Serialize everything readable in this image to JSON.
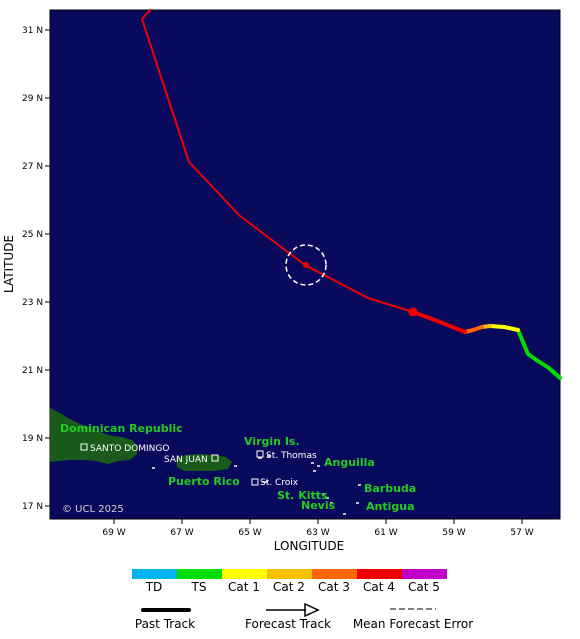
{
  "map": {
    "xlabel": "LONGITUDE",
    "ylabel": "LATITUDE",
    "lon_ticks": [
      "69 W",
      "67 W",
      "65 W",
      "63 W",
      "61 W",
      "59 W",
      "57 W"
    ],
    "lat_ticks": [
      "31 N",
      "29 N",
      "27 N",
      "25 N",
      "23 N",
      "21 N",
      "19 N",
      "17 N"
    ],
    "copyright": "© UCL 2025",
    "ocean_color": "#0a0a5c",
    "land_color": "#1a5a1a"
  },
  "places": {
    "dominican_republic": "Dominican Republic",
    "santo_domingo": "SANTO DOMINGO",
    "puerto_rico": "Puerto Rico",
    "san_juan": "SAN JUAN",
    "virgin_islands": "Virgin Is.",
    "st_thomas": "St. Thomas",
    "st_croix": "St. Croix",
    "anguilla": "Anguilla",
    "st_kitts": "St. Kitts",
    "nevis": "Nevis",
    "barbuda": "Barbuda",
    "antigua": "Antigua"
  },
  "track": {
    "past_track_color": "#ee0000",
    "forecast_color": "#ee0000",
    "current_position": {
      "lon": 60.0,
      "lat": 22.7
    },
    "forecast_error_center": {
      "lon": 63.4,
      "lat": 24.1
    }
  },
  "legend": {
    "categories": [
      {
        "label": "TD",
        "color": "#00b4f0"
      },
      {
        "label": "TS",
        "color": "#00dd00"
      },
      {
        "label": "Cat 1",
        "color": "#ffff00"
      },
      {
        "label": "Cat 2",
        "color": "#f5c000"
      },
      {
        "label": "Cat 3",
        "color": "#ff6600"
      },
      {
        "label": "Cat 4",
        "color": "#ee0000"
      },
      {
        "label": "Cat 5",
        "color": "#c000c8"
      }
    ],
    "past_track": "Past Track",
    "forecast_track": "Forecast Track",
    "mean_forecast_error": "Mean Forecast Error"
  }
}
